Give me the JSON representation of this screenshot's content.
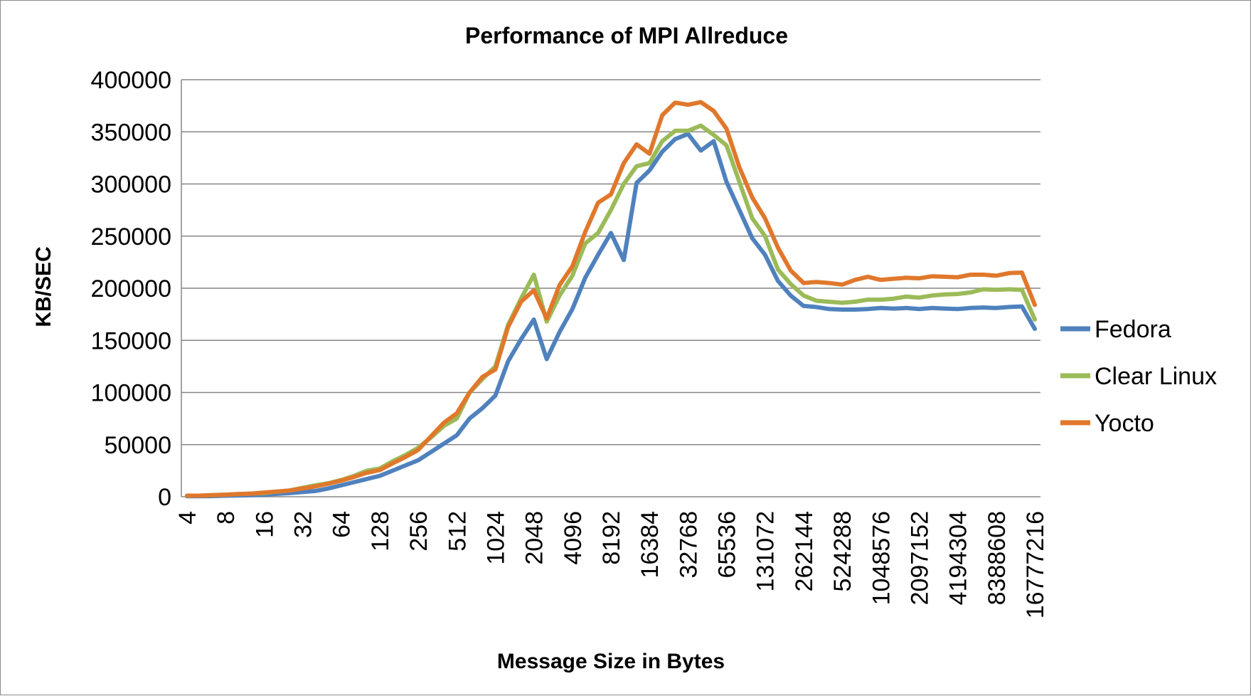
{
  "chart_data": {
    "type": "line",
    "title": "Performance of MPI Allreduce",
    "xlabel": "Message Size in Bytes",
    "ylabel": "KB/SEC",
    "ylim": [
      0,
      400000
    ],
    "yticks": [
      0,
      50000,
      100000,
      150000,
      200000,
      250000,
      300000,
      350000,
      400000
    ],
    "xtick_labels": [
      "4",
      "8",
      "16",
      "32",
      "64",
      "128",
      "256",
      "512",
      "1024",
      "2048",
      "4096",
      "8192",
      "16384",
      "32768",
      "65536",
      "131072",
      "262144",
      "524288",
      "1048576",
      "2097152",
      "4194304",
      "8388608",
      "16777216"
    ],
    "grid": true,
    "legend_position": "right",
    "x": [
      4,
      5,
      6,
      8,
      10,
      12,
      16,
      20,
      24,
      32,
      40,
      48,
      64,
      80,
      96,
      128,
      160,
      192,
      256,
      320,
      384,
      512,
      640,
      768,
      1024,
      1280,
      1536,
      2048,
      2560,
      3072,
      4096,
      5120,
      6144,
      8192,
      10240,
      12288,
      16384,
      20480,
      24576,
      32768,
      40960,
      49152,
      65536,
      81920,
      98304,
      131072,
      163840,
      196608,
      262144,
      327680,
      393216,
      524288,
      655360,
      786432,
      1048576,
      1310720,
      1572864,
      2097152,
      2621440,
      3145728,
      4194304,
      5242880,
      6291456,
      8388608,
      10485760,
      12582912,
      16777216
    ],
    "series": [
      {
        "name": "Fedora",
        "color": "#4f81bd",
        "values": [
          500,
          500,
          600,
          1000,
          1200,
          1500,
          2000,
          2800,
          3500,
          4500,
          5500,
          8000,
          11000,
          14000,
          17000,
          20000,
          25000,
          30000,
          35000,
          43000,
          51000,
          59000,
          75000,
          85000,
          97000,
          130000,
          151000,
          170000,
          132000,
          158000,
          180000,
          210000,
          232000,
          253000,
          227000,
          301000,
          313000,
          331000,
          343000,
          348000,
          332000,
          341000,
          302000,
          275000,
          248000,
          232000,
          207000,
          193000,
          183000,
          182000,
          180000,
          179500,
          179500,
          180000,
          181000,
          180500,
          181000,
          180000,
          181000,
          180500,
          180000,
          181000,
          181500,
          181000,
          182000,
          182500,
          161000
        ]
      },
      {
        "name": "Clear Linux",
        "color": "#9bbb59",
        "values": [
          1000,
          1000,
          1500,
          2000,
          2500,
          3000,
          3500,
          5000,
          6000,
          8500,
          11000,
          13000,
          16000,
          20000,
          25000,
          27000,
          34000,
          40000,
          47000,
          57000,
          68000,
          75000,
          100000,
          113000,
          125000,
          165000,
          190000,
          213000,
          168000,
          193000,
          212000,
          243000,
          253000,
          275000,
          300000,
          317000,
          320000,
          341000,
          351000,
          351000,
          356000,
          347000,
          337000,
          302000,
          267000,
          250000,
          218000,
          204000,
          193000,
          188000,
          187000,
          186000,
          187000,
          189000,
          189000,
          190000,
          192000,
          191000,
          193000,
          194000,
          194500,
          196000,
          199000,
          198500,
          199000,
          198500,
          170000
        ]
      },
      {
        "name": "Yocto",
        "color": "#e0782c",
        "values": [
          1000,
          1000,
          1500,
          2000,
          2500,
          3000,
          4000,
          5000,
          6000,
          8000,
          10000,
          12500,
          15500,
          19000,
          23000,
          25500,
          32000,
          38000,
          45000,
          58000,
          71000,
          80000,
          100000,
          115000,
          122000,
          163000,
          187000,
          198000,
          171000,
          203000,
          221000,
          254000,
          282000,
          290000,
          320000,
          338000,
          329000,
          366000,
          378000,
          376000,
          378500,
          370000,
          353000,
          316000,
          287000,
          267000,
          239000,
          217000,
          205000,
          206000,
          205000,
          203500,
          208000,
          211000,
          208000,
          209000,
          210000,
          209500,
          211500,
          211000,
          210500,
          213000,
          213000,
          212000,
          214500,
          215000,
          184000
        ]
      }
    ]
  }
}
